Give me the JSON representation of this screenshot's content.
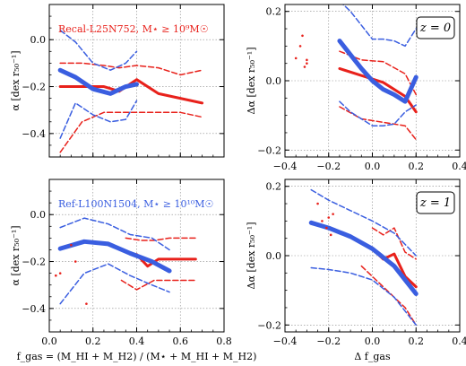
{
  "chart_data": [
    {
      "type": "line",
      "panel": "top-left",
      "title": "Recal-L25N752, M⋆ ≥ 10⁹M☉",
      "title_color": "#e8211b",
      "xlabel": "",
      "ylabel": "α [dex r₅₀⁻¹]",
      "xlim": [
        0,
        0.8
      ],
      "ylim": [
        -0.5,
        0.15
      ],
      "xticks": [
        0.0,
        0.2,
        0.4,
        0.6,
        0.8
      ],
      "xtick_labels": [
        "",
        "",
        "",
        "",
        ""
      ],
      "yticks": [
        -0.4,
        -0.2,
        0.0
      ],
      "ytick_labels": [
        "−0.4",
        "−0.2",
        "0.0"
      ],
      "grid": "dotted",
      "series": [
        {
          "color": "#e8211b",
          "style": "solid",
          "width": 3,
          "x": [
            0.05,
            0.15,
            0.25,
            0.32,
            0.4,
            0.5,
            0.6,
            0.7
          ],
          "y": [
            -0.2,
            -0.2,
            -0.2,
            -0.22,
            -0.17,
            -0.23,
            -0.25,
            -0.27
          ]
        },
        {
          "color": "#e8211b",
          "style": "dashed",
          "width": 1.5,
          "x": [
            0.05,
            0.15,
            0.25,
            0.32,
            0.4,
            0.5,
            0.6,
            0.7
          ],
          "y": [
            -0.1,
            -0.1,
            -0.11,
            -0.12,
            -0.11,
            -0.12,
            -0.15,
            -0.13
          ]
        },
        {
          "color": "#e8211b",
          "style": "dashed",
          "width": 1.5,
          "x": [
            0.05,
            0.15,
            0.25,
            0.32,
            0.4,
            0.5,
            0.6,
            0.7
          ],
          "y": [
            -0.48,
            -0.35,
            -0.31,
            -0.31,
            -0.31,
            -0.31,
            -0.31,
            -0.33
          ]
        },
        {
          "color": "#3a5ee0",
          "style": "solid",
          "width": 5,
          "x": [
            0.05,
            0.12,
            0.2,
            0.28,
            0.35,
            0.4
          ],
          "y": [
            -0.13,
            -0.16,
            -0.21,
            -0.23,
            -0.2,
            -0.19
          ]
        },
        {
          "color": "#3a5ee0",
          "style": "dashed",
          "width": 1.5,
          "x": [
            0.05,
            0.12,
            0.2,
            0.28,
            0.35,
            0.4
          ],
          "y": [
            0.04,
            -0.01,
            -0.1,
            -0.13,
            -0.1,
            -0.05
          ]
        },
        {
          "color": "#3a5ee0",
          "style": "dashed",
          "width": 1.5,
          "x": [
            0.05,
            0.12,
            0.2,
            0.28,
            0.35,
            0.4
          ],
          "y": [
            -0.42,
            -0.27,
            -0.32,
            -0.35,
            -0.34,
            -0.26
          ]
        }
      ],
      "scatter": [],
      "zbox": ""
    },
    {
      "type": "line",
      "panel": "top-right",
      "title": "",
      "xlabel": "",
      "ylabel": "Δα [dex r₅₀⁻¹]",
      "xlim": [
        -0.4,
        0.4
      ],
      "ylim": [
        -0.22,
        0.22
      ],
      "xticks": [
        -0.4,
        -0.2,
        0.0,
        0.2,
        0.4
      ],
      "xtick_labels": [
        "−0.4",
        "−0.2",
        "0.0",
        "0.2",
        "0.4"
      ],
      "yticks": [
        -0.2,
        0.0,
        0.2
      ],
      "ytick_labels": [
        "−0.2",
        "0.0",
        "0.2"
      ],
      "grid": "dotted",
      "series": [
        {
          "color": "#e8211b",
          "style": "solid",
          "width": 3,
          "x": [
            -0.15,
            -0.05,
            0.05,
            0.15,
            0.2
          ],
          "y": [
            0.035,
            0.015,
            -0.005,
            -0.045,
            -0.09
          ]
        },
        {
          "color": "#e8211b",
          "style": "dashed",
          "width": 1.5,
          "x": [
            -0.15,
            -0.05,
            0.05,
            0.15,
            0.2
          ],
          "y": [
            0.085,
            0.06,
            0.055,
            0.02,
            -0.04
          ]
        },
        {
          "color": "#e8211b",
          "style": "dashed",
          "width": 1.5,
          "x": [
            -0.15,
            -0.05,
            0.05,
            0.15,
            0.2
          ],
          "y": [
            -0.075,
            -0.11,
            -0.12,
            -0.13,
            -0.17
          ]
        },
        {
          "color": "#3a5ee0",
          "style": "solid",
          "width": 5,
          "x": [
            -0.15,
            -0.1,
            -0.05,
            0.0,
            0.05,
            0.1,
            0.15,
            0.2
          ],
          "y": [
            0.115,
            0.075,
            0.035,
            0.0,
            -0.025,
            -0.04,
            -0.06,
            0.01
          ]
        },
        {
          "color": "#3a5ee0",
          "style": "dashed",
          "width": 1.5,
          "x": [
            -0.15,
            -0.1,
            -0.05,
            0.0,
            0.05,
            0.1,
            0.15,
            0.2
          ],
          "y": [
            0.23,
            0.2,
            0.16,
            0.12,
            0.12,
            0.115,
            0.1,
            0.15
          ]
        },
        {
          "color": "#3a5ee0",
          "style": "dashed",
          "width": 1.5,
          "x": [
            -0.15,
            -0.1,
            -0.05,
            0.0,
            0.05,
            0.1,
            0.15,
            0.2
          ],
          "y": [
            -0.06,
            -0.09,
            -0.11,
            -0.13,
            -0.13,
            -0.125,
            -0.09,
            -0.07
          ]
        }
      ],
      "scatter": [
        {
          "color": "#e8211b",
          "x": [
            -0.35,
            -0.33,
            -0.31,
            -0.3,
            -0.32,
            -0.3
          ],
          "y": [
            0.065,
            0.1,
            0.04,
            0.06,
            0.13,
            0.05
          ]
        }
      ],
      "zbox": "z = 0"
    },
    {
      "type": "line",
      "panel": "bottom-left",
      "title": "Ref-L100N1504, M⋆ ≥ 10¹⁰M☉",
      "title_color": "#3a5ee0",
      "xlabel": "f_gas = (M_HI + M_H2) / (M⋆ + M_HI + M_H2)",
      "ylabel": "α [dex r₅₀⁻¹]",
      "xlim": [
        0,
        0.8
      ],
      "ylim": [
        -0.5,
        0.15
      ],
      "xticks": [
        0.0,
        0.2,
        0.4,
        0.6,
        0.8
      ],
      "xtick_labels": [
        "0.0",
        "0.2",
        "0.4",
        "0.6",
        "0.8"
      ],
      "yticks": [
        -0.4,
        -0.2,
        0.0
      ],
      "ytick_labels": [
        "−0.4",
        "−0.2",
        "0.0"
      ],
      "grid": "dotted",
      "series": [
        {
          "color": "#e8211b",
          "style": "solid",
          "width": 3,
          "x": [
            0.4,
            0.45,
            0.5,
            0.55,
            0.67
          ],
          "y": [
            -0.17,
            -0.22,
            -0.19,
            -0.19,
            -0.19
          ]
        },
        {
          "color": "#e8211b",
          "style": "dashed",
          "width": 1.5,
          "x": [
            0.35,
            0.42,
            0.48,
            0.55,
            0.67
          ],
          "y": [
            -0.1,
            -0.11,
            -0.11,
            -0.1,
            -0.1
          ]
        },
        {
          "color": "#e8211b",
          "style": "dashed",
          "width": 1.5,
          "x": [
            0.33,
            0.4,
            0.48,
            0.55,
            0.67
          ],
          "y": [
            -0.28,
            -0.32,
            -0.28,
            -0.28,
            -0.28
          ]
        },
        {
          "color": "#3a5ee0",
          "style": "solid",
          "width": 5,
          "x": [
            0.05,
            0.16,
            0.27,
            0.37,
            0.47,
            0.55
          ],
          "y": [
            -0.145,
            -0.115,
            -0.125,
            -0.165,
            -0.2,
            -0.24
          ]
        },
        {
          "color": "#3a5ee0",
          "style": "dashed",
          "width": 1.5,
          "x": [
            0.05,
            0.16,
            0.27,
            0.37,
            0.47,
            0.55
          ],
          "y": [
            -0.055,
            -0.015,
            -0.04,
            -0.085,
            -0.1,
            -0.15
          ]
        },
        {
          "color": "#3a5ee0",
          "style": "dashed",
          "width": 1.5,
          "x": [
            0.05,
            0.16,
            0.27,
            0.37,
            0.47,
            0.55
          ],
          "y": [
            -0.38,
            -0.25,
            -0.21,
            -0.26,
            -0.3,
            -0.33
          ]
        }
      ],
      "scatter": [
        {
          "color": "#e8211b",
          "x": [
            0.1,
            0.12,
            0.05,
            0.03,
            0.17
          ],
          "y": [
            -0.13,
            -0.2,
            -0.25,
            -0.26,
            -0.38
          ]
        }
      ],
      "zbox": ""
    },
    {
      "type": "line",
      "panel": "bottom-right",
      "title": "",
      "xlabel": "Δ f_gas",
      "ylabel": "Δα [dex r₅₀⁻¹]",
      "xlim": [
        -0.4,
        0.4
      ],
      "ylim": [
        -0.22,
        0.22
      ],
      "xticks": [
        -0.4,
        -0.2,
        0.0,
        0.2,
        0.4
      ],
      "xtick_labels": [
        "−0.4",
        "−0.2",
        "0.0",
        "0.2",
        "0.4"
      ],
      "yticks": [
        -0.2,
        0.0,
        0.2
      ],
      "ytick_labels": [
        "−0.2",
        "0.0",
        "0.2"
      ],
      "grid": "dotted",
      "series": [
        {
          "color": "#e8211b",
          "style": "solid",
          "width": 3,
          "x": [
            0.0,
            0.05,
            0.1,
            0.15,
            0.2
          ],
          "y": [
            0.02,
            -0.01,
            0.005,
            -0.06,
            -0.09
          ]
        },
        {
          "color": "#e8211b",
          "style": "dashed",
          "width": 1.5,
          "x": [
            0.0,
            0.05,
            0.1,
            0.15,
            0.2
          ],
          "y": [
            0.08,
            0.06,
            0.08,
            0.01,
            -0.01
          ]
        },
        {
          "color": "#e8211b",
          "style": "dashed",
          "width": 1.5,
          "x": [
            -0.05,
            0.05,
            0.1,
            0.15,
            0.2
          ],
          "y": [
            -0.03,
            -0.09,
            -0.12,
            -0.15,
            -0.2
          ]
        },
        {
          "color": "#3a5ee0",
          "style": "solid",
          "width": 5,
          "x": [
            -0.28,
            -0.2,
            -0.1,
            0.0,
            0.1,
            0.2
          ],
          "y": [
            0.095,
            0.08,
            0.055,
            0.02,
            -0.03,
            -0.11
          ]
        },
        {
          "color": "#3a5ee0",
          "style": "dashed",
          "width": 1.5,
          "x": [
            -0.28,
            -0.2,
            -0.1,
            0.0,
            0.1,
            0.2
          ],
          "y": [
            0.19,
            0.16,
            0.13,
            0.1,
            0.065,
            0.0
          ]
        },
        {
          "color": "#3a5ee0",
          "style": "dashed",
          "width": 1.5,
          "x": [
            -0.28,
            -0.2,
            -0.1,
            0.0,
            0.1,
            0.2
          ],
          "y": [
            -0.035,
            -0.04,
            -0.05,
            -0.07,
            -0.12,
            -0.2
          ]
        }
      ],
      "scatter": [
        {
          "color": "#e8211b",
          "x": [
            -0.25,
            -0.23,
            -0.21,
            -0.2,
            -0.19,
            -0.18
          ],
          "y": [
            0.15,
            0.1,
            0.08,
            0.11,
            0.06,
            0.12
          ]
        }
      ],
      "zbox": "z = 1"
    }
  ]
}
